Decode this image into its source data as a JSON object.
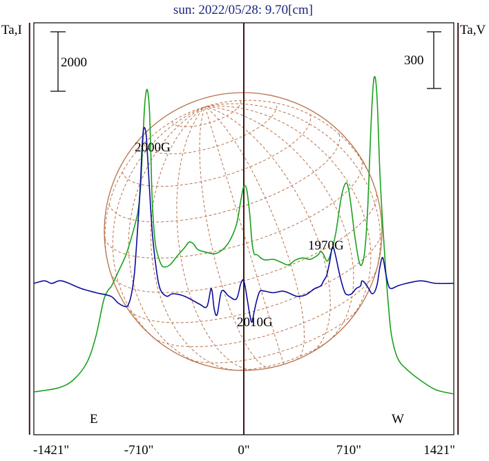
{
  "header": {
    "title": "sun: 2022/05/28: 9.70[cm]",
    "left_axis_label": "Ta,I",
    "right_axis_label": "Ta,V"
  },
  "scale_bars": {
    "left_value": "2000",
    "right_value": "300"
  },
  "limb_labels": {
    "east": "E",
    "west": "W"
  },
  "colors": {
    "title": "#1a237e",
    "stokes_i": "#1aa01a",
    "stokes_v": "#0a0a9c",
    "disk_grid": "#b8714a",
    "marker_lines": "#3a1414",
    "frame": "#000000"
  },
  "chart_data": {
    "type": "line",
    "title": "sun: 2022/05/28: 9.70[cm]",
    "xlabel": "",
    "x_ticks": [
      "-1421\"",
      "-710\"",
      "0\"",
      "710\"",
      "1421\""
    ],
    "x_tick_values": [
      -1421,
      -710,
      0,
      710,
      1421
    ],
    "xlim": [
      -1421,
      1421
    ],
    "limb_positions": [
      -1450,
      1450
    ],
    "grid": false,
    "series": [
      {
        "name": "Ta,I",
        "color": "#1aa01a",
        "x": [
          -1421,
          -1250,
          -1150,
          -1060,
          -1000,
          -950,
          -920,
          -900,
          -880,
          -850,
          -800,
          -760,
          -720,
          -700,
          -690,
          -680,
          -670,
          -655,
          -640,
          -630,
          -620,
          -600,
          -580,
          -560,
          -540,
          -500,
          -450,
          -400,
          -370,
          -340,
          -320,
          -300,
          -250,
          -200,
          -150,
          -100,
          -50,
          -20,
          0,
          20,
          40,
          55,
          70,
          85,
          100,
          120,
          150,
          200,
          250,
          300,
          350,
          400,
          450,
          500,
          520,
          540,
          560,
          580,
          620,
          660,
          690,
          710,
          730,
          750,
          780,
          800,
          820,
          840,
          860,
          880,
          900,
          920,
          940,
          960,
          980,
          1000,
          1040,
          1100,
          1200,
          1300,
          1421
        ],
        "values": [
          90,
          150,
          270,
          520,
          900,
          1400,
          1550,
          1600,
          1680,
          1820,
          2050,
          2320,
          2650,
          3000,
          3400,
          3850,
          4250,
          4450,
          4200,
          3600,
          2850,
          2250,
          2050,
          1930,
          1890,
          1920,
          2050,
          2170,
          2250,
          2220,
          2160,
          2130,
          2100,
          2080,
          2130,
          2250,
          2500,
          2850,
          3050,
          3000,
          2650,
          2250,
          2080,
          2070,
          2050,
          2010,
          1990,
          2000,
          1960,
          1920,
          1990,
          2020,
          2000,
          2060,
          2110,
          2070,
          1980,
          2030,
          2350,
          2900,
          3100,
          3000,
          2700,
          2350,
          1970,
          1930,
          2150,
          2800,
          3900,
          4600,
          4400,
          3300,
          2500,
          1850,
          1300,
          900,
          580,
          420,
          250,
          120,
          60
        ]
      },
      {
        "name": "Ta,V",
        "color": "#0a0a9c",
        "x": [
          -1421,
          -1350,
          -1300,
          -1250,
          -1200,
          -1100,
          -1000,
          -900,
          -850,
          -800,
          -780,
          -760,
          -740,
          -720,
          -700,
          -690,
          -680,
          -670,
          -660,
          -650,
          -640,
          -620,
          -600,
          -580,
          -560,
          -520,
          -480,
          -400,
          -300,
          -250,
          -220,
          -200,
          -180,
          -150,
          -100,
          -50,
          -20,
          0,
          20,
          40,
          55,
          70,
          90,
          110,
          140,
          200,
          260,
          300,
          360,
          420,
          480,
          520,
          540,
          560,
          580,
          600,
          620,
          650,
          680,
          700,
          730,
          760,
          790,
          800,
          830,
          870,
          900,
          920,
          940,
          960,
          980,
          1000,
          1040,
          1100,
          1200,
          1300,
          1421
        ],
        "values": [
          0,
          5,
          0,
          5,
          2,
          -10,
          -18,
          -25,
          -38,
          -45,
          -40,
          -20,
          20,
          100,
          190,
          255,
          295,
          300,
          285,
          240,
          190,
          100,
          45,
          5,
          -15,
          -25,
          -20,
          -25,
          -40,
          -45,
          -10,
          -50,
          -60,
          -15,
          -25,
          -30,
          0,
          5,
          -25,
          -60,
          -75,
          -55,
          -30,
          -15,
          -15,
          -18,
          -15,
          -18,
          -25,
          -22,
          -10,
          -5,
          5,
          15,
          40,
          70,
          55,
          15,
          -15,
          -22,
          -20,
          -10,
          -5,
          5,
          -3,
          -20,
          -5,
          30,
          50,
          20,
          -5,
          -10,
          -5,
          0,
          5,
          0,
          0
        ]
      }
    ],
    "ylim_i": [
      0,
      5100
    ],
    "ylim_v": [
      -320,
      462
    ],
    "annotations": [
      "2000G",
      "1970G",
      "2010G"
    ]
  }
}
